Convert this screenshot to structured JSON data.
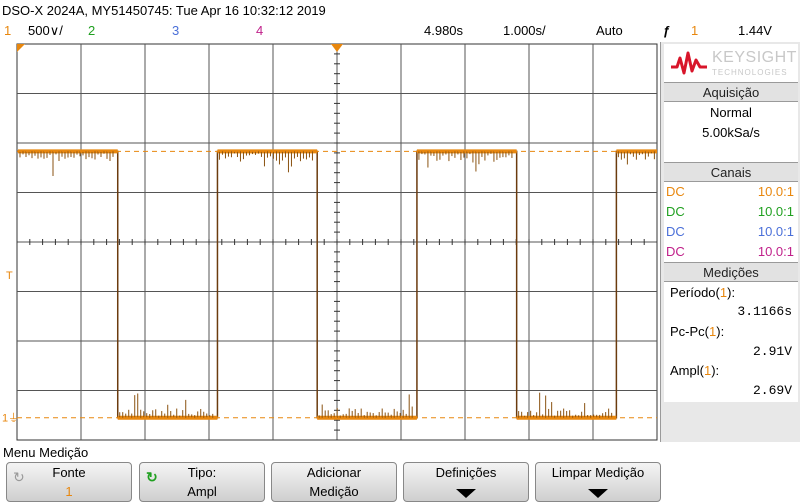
{
  "header": {
    "title": "DSO-X 2024A, MY51450745: Tue Apr 16 10:32:12 2019",
    "ch1_num": "1",
    "ch1_scale": "500∨/",
    "ch2_num": "2",
    "ch3_num": "3",
    "ch4_num": "4",
    "time_delay": "4.980s",
    "time_scale": "1.000s/",
    "trigger_mode": "Auto",
    "trigger_slope_icon": "ƒ",
    "trigger_source": "1",
    "trigger_level": "1.44V"
  },
  "colors": {
    "ch1": "#e8870e",
    "ch2": "#20a020",
    "ch3": "#4a6fd8",
    "ch4": "#c0208a"
  },
  "waveform": {
    "channel": "1",
    "high_level_v": 2.69,
    "low_level_v": 0.0,
    "period_s": 3.1166,
    "ch1_scale_v_per_div": 0.5,
    "time_scale_s_per_div": 1.0,
    "ground_marker": "1⏚",
    "trigger_marker": "T"
  },
  "brand": {
    "name": "KEYSIGHT",
    "sub": "TECHNOLOGIES"
  },
  "acquisition": {
    "heading": "Aquisição",
    "mode": "Normal",
    "rate": "5.00kSa/s"
  },
  "channels": {
    "heading": "Canais",
    "rows": [
      {
        "coupling": "DC",
        "probe": "10.0:1"
      },
      {
        "coupling": "DC",
        "probe": "10.0:1"
      },
      {
        "coupling": "DC",
        "probe": "10.0:1"
      },
      {
        "coupling": "DC",
        "probe": "10.0:1"
      }
    ]
  },
  "measurements": {
    "heading": "Medições",
    "items": [
      {
        "label": "Período(",
        "ch": "1",
        "close": "):",
        "value": "3.1166s"
      },
      {
        "label": "Pc-Pc(",
        "ch": "1",
        "close": "):",
        "value": "2.91V"
      },
      {
        "label": "Ampl(",
        "ch": "1",
        "close": "):",
        "value": "2.69V"
      }
    ]
  },
  "menu": {
    "title": "Menu Medição",
    "softkeys": [
      {
        "line1": "Fonte",
        "line2": "1"
      },
      {
        "line1": "Tipo:",
        "line2": "Ampl"
      },
      {
        "line1": "Adicionar",
        "line2": "Medição"
      },
      {
        "line1": "Definições",
        "line2": ""
      },
      {
        "line1": "Limpar Medição",
        "line2": ""
      }
    ]
  }
}
